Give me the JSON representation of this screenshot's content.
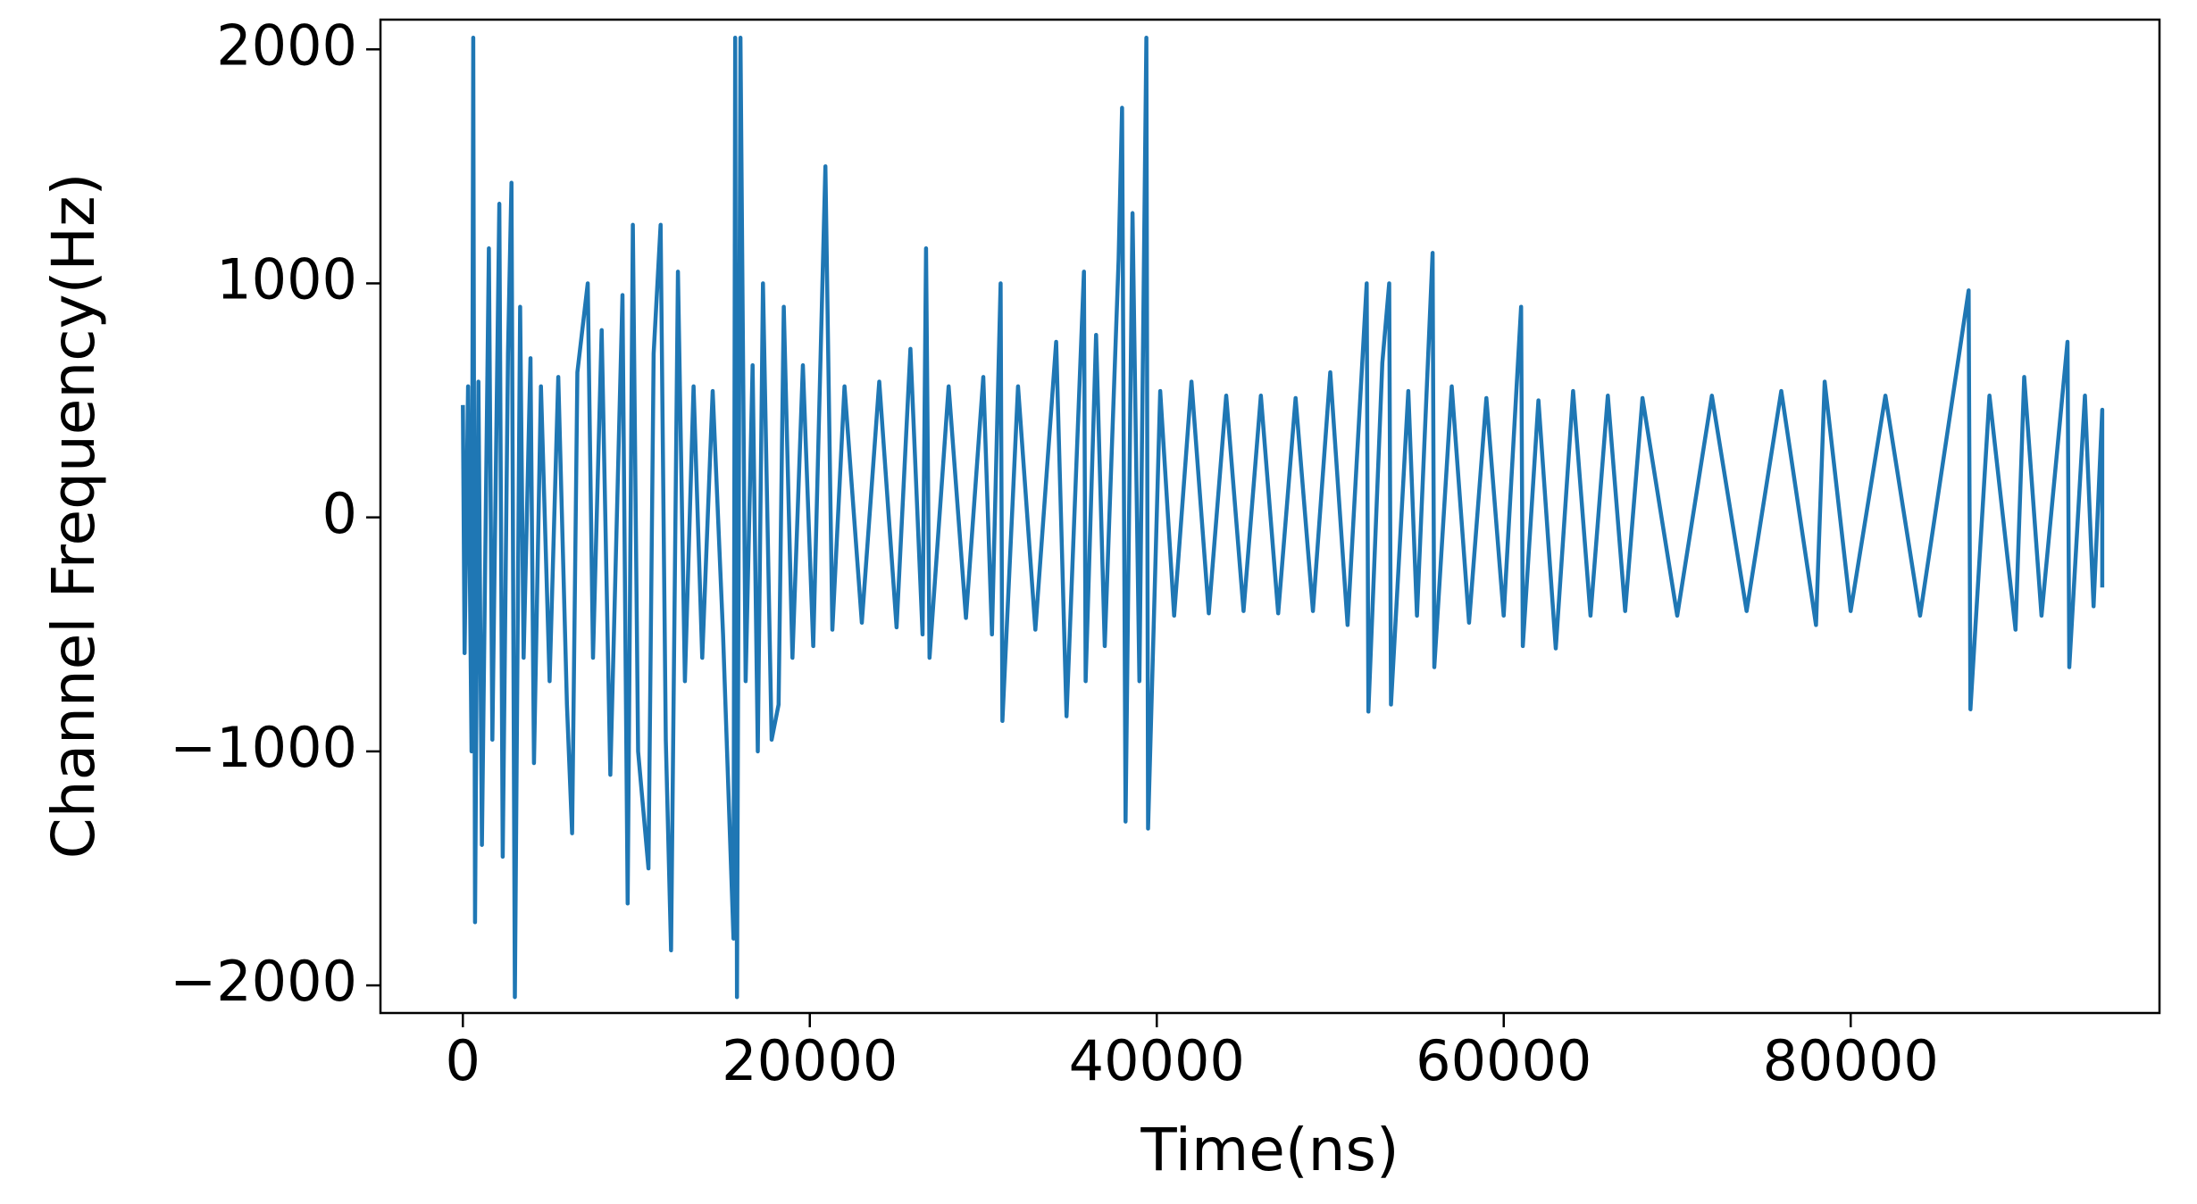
{
  "chart_data": {
    "type": "line",
    "xlabel": "Time(ns)",
    "ylabel": "Channel Frequency(Hz)",
    "color": "#1f77b4",
    "xlim": [
      -4750,
      97800
    ],
    "ylim": [
      -2118,
      2127
    ],
    "xticks": [
      0,
      20000,
      40000,
      60000,
      80000
    ],
    "yticks": [
      {
        "value": -2000,
        "label": "−2000"
      },
      {
        "value": -1000,
        "label": "−1000"
      },
      0,
      1000,
      2000
    ],
    "x": [
      0,
      100,
      300,
      500,
      600,
      700,
      900,
      1100,
      1500,
      1700,
      2100,
      2300,
      2600,
      2800,
      3000,
      3300,
      3500,
      3900,
      4100,
      4500,
      5000,
      5500,
      6000,
      6300,
      6600,
      7200,
      7500,
      8000,
      8500,
      9200,
      9500,
      9800,
      10100,
      10700,
      11000,
      11400,
      11700,
      12000,
      12400,
      12800,
      13300,
      13800,
      14400,
      15000,
      15600,
      15700,
      15800,
      16000,
      16300,
      16700,
      17000,
      17300,
      17800,
      18200,
      18500,
      19000,
      19600,
      20200,
      20900,
      21300,
      22000,
      23000,
      24000,
      25000,
      25800,
      26500,
      26700,
      26900,
      28000,
      29000,
      30000,
      30500,
      31000,
      31100,
      32000,
      33000,
      34200,
      34800,
      35800,
      35900,
      36500,
      37000,
      37800,
      38000,
      38200,
      38600,
      39000,
      39400,
      39500,
      40200,
      41000,
      42000,
      43000,
      44000,
      45000,
      46000,
      47000,
      48000,
      49000,
      50000,
      51000,
      52100,
      52200,
      53000,
      53400,
      53500,
      54500,
      55000,
      55900,
      56000,
      57000,
      58000,
      59000,
      60000,
      61000,
      61100,
      62000,
      63000,
      64000,
      65000,
      66000,
      67000,
      68000,
      70000,
      72000,
      74000,
      76000,
      78000,
      78500,
      80000,
      82000,
      84000,
      86800,
      86900,
      88000,
      89500,
      90000,
      91000,
      92500,
      92600,
      93500,
      94000,
      94500,
      94500
    ],
    "values": [
      480,
      -580,
      560,
      -1000,
      2050,
      -1730,
      580,
      -1400,
      1150,
      -950,
      1340,
      -1450,
      700,
      1430,
      -2050,
      900,
      -600,
      680,
      -1050,
      560,
      -700,
      600,
      -800,
      -1350,
      620,
      1000,
      -600,
      800,
      -1100,
      950,
      -1650,
      1250,
      -1000,
      -1500,
      700,
      1250,
      -950,
      -1850,
      1050,
      -700,
      560,
      -600,
      540,
      -500,
      -1800,
      2050,
      -2050,
      2050,
      -700,
      650,
      -1000,
      1000,
      -950,
      -800,
      900,
      -600,
      650,
      -550,
      1500,
      -480,
      560,
      -450,
      580,
      -470,
      720,
      -500,
      1150,
      -600,
      560,
      -430,
      600,
      -500,
      1000,
      -870,
      560,
      -480,
      750,
      -850,
      1050,
      -700,
      780,
      -550,
      1100,
      1750,
      -1300,
      1300,
      -700,
      2050,
      -1330,
      540,
      -420,
      580,
      -410,
      520,
      -400,
      520,
      -410,
      510,
      -400,
      620,
      -460,
      1000,
      -830,
      660,
      1000,
      -800,
      540,
      -420,
      1130,
      -640,
      560,
      -450,
      510,
      -420,
      900,
      -550,
      500,
      -560,
      540,
      -420,
      520,
      -400,
      510,
      -420,
      520,
      -400,
      540,
      -460,
      580,
      -400,
      520,
      -420,
      970,
      -820,
      520,
      -480,
      600,
      -420,
      750,
      -640,
      520,
      -380,
      460,
      -300
    ]
  }
}
